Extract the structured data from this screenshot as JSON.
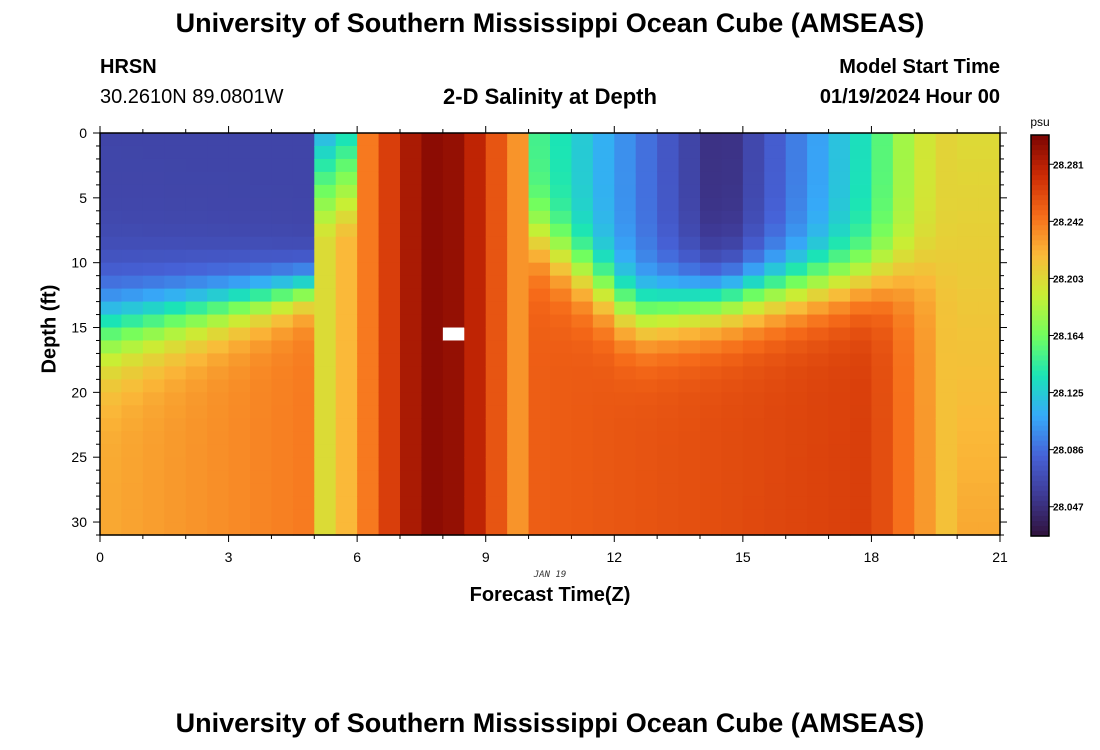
{
  "header": {
    "title": "University of Southern Mississippi Ocean Cube (AMSEAS)",
    "station": "HRSN",
    "coords": "30.2610N  89.0801W",
    "subtitle": "2-D Salinity at Depth",
    "model_start_label": "Model Start Time",
    "model_start_value": "01/19/2024 Hour 00"
  },
  "footer": {
    "title": "University of Southern Mississippi Ocean Cube (AMSEAS)"
  },
  "chart_data": {
    "type": "heatmap",
    "title": "2-D Salinity at Depth",
    "xlabel": "Forecast Time(Z)",
    "ylabel": "Depth (ft)",
    "date_label": "JAN 19",
    "xlim": [
      0,
      21
    ],
    "ylim": [
      0,
      31
    ],
    "xticks": [
      0,
      3,
      6,
      9,
      12,
      15,
      18,
      21
    ],
    "yticks": [
      0,
      5,
      10,
      15,
      20,
      25,
      30
    ],
    "x_minor_step": 1,
    "y_minor_step": 1,
    "grid": false,
    "colorbar": {
      "unit": "psu",
      "min": 28.027,
      "max": 28.301,
      "ticks": [
        "28.047",
        "28.086",
        "28.125",
        "28.164",
        "28.203",
        "28.242",
        "28.281"
      ],
      "colors": [
        "#30123b",
        "#3e3994",
        "#4662d7",
        "#36aaf9",
        "#1ae4b6",
        "#72fe5e",
        "#c8ef34",
        "#faba39",
        "#f66b19",
        "#cb2a04",
        "#7a0403"
      ]
    },
    "grid_cols": 42,
    "grid_rows": 31,
    "cell_width_hours": 0.5,
    "cell_height_ft": 1,
    "value_grid_description": "Approximate salinity (psu): low (~28.04-28.07) in upper-left and upper-right surface regions, high (~28.26-28.29) in a vertical plume near hours 6-10 and a deep layer on the right at hours 12-19; blank (no data) cell near hour 8, 15 ft.",
    "missing_cells": [
      [
        16,
        15
      ]
    ]
  }
}
